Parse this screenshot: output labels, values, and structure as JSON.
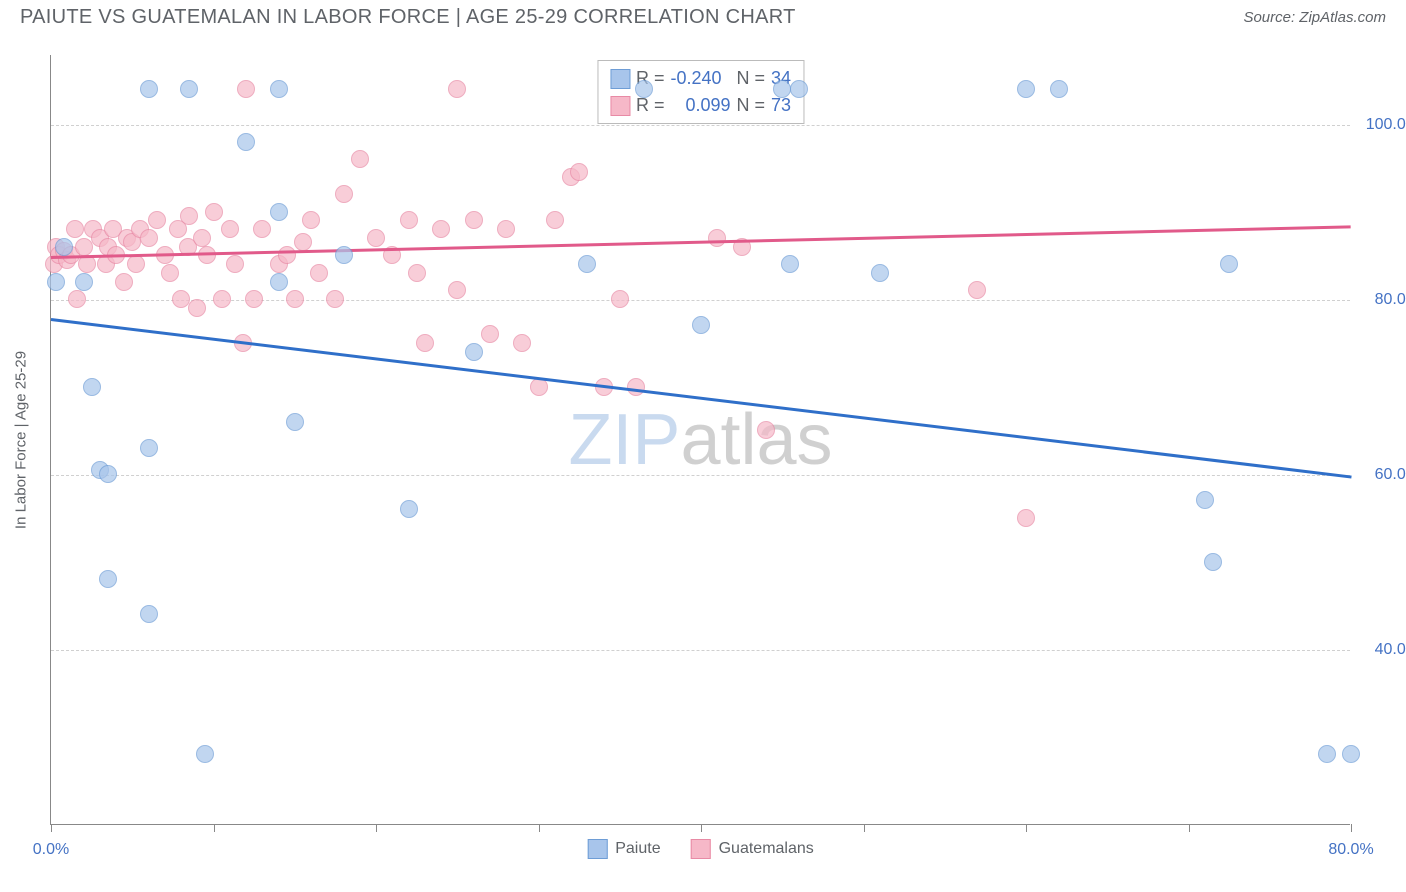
{
  "title": "PAIUTE VS GUATEMALAN IN LABOR FORCE | AGE 25-29 CORRELATION CHART",
  "source": "Source: ZipAtlas.com",
  "chart": {
    "type": "scatter",
    "yaxis_label": "In Labor Force | Age 25-29",
    "xlim": [
      0,
      80
    ],
    "ylim": [
      20,
      108
    ],
    "xtick_positions": [
      0,
      10,
      20,
      30,
      40,
      50,
      60,
      70,
      80
    ],
    "xtick_labels": {
      "0": "0.0%",
      "80": "80.0%"
    },
    "ytick_positions": [
      40,
      60,
      80,
      100
    ],
    "ytick_labels": [
      "40.0%",
      "60.0%",
      "80.0%",
      "100.0%"
    ],
    "background_color": "#ffffff",
    "grid_color": "#d0d0d0",
    "marker_radius": 9,
    "series": {
      "paiute": {
        "label": "Paiute",
        "color_fill": "#a8c5eb",
        "color_stroke": "#6e9dd6",
        "reg_color": "#2f6fc9",
        "R": "-0.240",
        "N": "34",
        "reg_start": [
          0,
          78
        ],
        "reg_end": [
          80,
          60
        ],
        "points": [
          [
            0.3,
            82
          ],
          [
            0.8,
            86
          ],
          [
            2,
            82
          ],
          [
            2.5,
            70
          ],
          [
            3,
            60.5
          ],
          [
            3.5,
            60
          ],
          [
            3.5,
            48
          ],
          [
            6,
            104
          ],
          [
            6,
            63
          ],
          [
            6,
            44
          ],
          [
            8.5,
            104
          ],
          [
            9.5,
            28
          ],
          [
            12,
            98
          ],
          [
            14,
            104
          ],
          [
            14,
            90
          ],
          [
            14,
            82
          ],
          [
            15,
            66
          ],
          [
            18,
            85
          ],
          [
            22,
            56
          ],
          [
            26,
            74
          ],
          [
            33,
            84
          ],
          [
            36.5,
            104
          ],
          [
            40,
            77
          ],
          [
            45,
            104
          ],
          [
            45.5,
            84
          ],
          [
            46,
            104
          ],
          [
            51,
            83
          ],
          [
            60,
            104
          ],
          [
            62,
            104
          ],
          [
            71,
            57
          ],
          [
            71.5,
            50
          ],
          [
            72.5,
            84
          ],
          [
            78.5,
            28
          ],
          [
            80,
            28
          ]
        ]
      },
      "guatemalans": {
        "label": "Guatemalans",
        "color_fill": "#f6b8c8",
        "color_stroke": "#e88aa5",
        "reg_color": "#e15a8a",
        "R": "0.099",
        "N": "73",
        "reg_start": [
          0,
          85
        ],
        "reg_end": [
          80,
          88.5
        ],
        "points": [
          [
            0.2,
            84
          ],
          [
            0.3,
            86
          ],
          [
            0.5,
            85
          ],
          [
            0.8,
            85.5
          ],
          [
            1,
            84.5
          ],
          [
            1.2,
            85
          ],
          [
            1.5,
            88
          ],
          [
            1.6,
            80
          ],
          [
            2,
            86
          ],
          [
            2.2,
            84
          ],
          [
            2.6,
            88
          ],
          [
            3,
            87
          ],
          [
            3.4,
            84
          ],
          [
            3.5,
            86
          ],
          [
            3.8,
            88
          ],
          [
            4,
            85
          ],
          [
            4.5,
            82
          ],
          [
            4.7,
            87
          ],
          [
            5,
            86.5
          ],
          [
            5.2,
            84
          ],
          [
            5.5,
            88
          ],
          [
            6,
            87
          ],
          [
            6.5,
            89
          ],
          [
            7,
            85
          ],
          [
            7.3,
            83
          ],
          [
            7.8,
            88
          ],
          [
            8,
            80
          ],
          [
            8.4,
            86
          ],
          [
            8.5,
            89.5
          ],
          [
            9,
            79
          ],
          [
            9.3,
            87
          ],
          [
            9.6,
            85
          ],
          [
            10,
            90
          ],
          [
            10.5,
            80
          ],
          [
            11,
            88
          ],
          [
            11.3,
            84
          ],
          [
            11.8,
            75
          ],
          [
            12,
            104
          ],
          [
            12.5,
            80
          ],
          [
            13,
            88
          ],
          [
            14,
            84
          ],
          [
            14.5,
            85
          ],
          [
            15,
            80
          ],
          [
            15.5,
            86.5
          ],
          [
            16,
            89
          ],
          [
            16.5,
            83
          ],
          [
            17.5,
            80
          ],
          [
            18,
            92
          ],
          [
            19,
            96
          ],
          [
            20,
            87
          ],
          [
            21,
            85
          ],
          [
            22,
            89
          ],
          [
            22.5,
            83
          ],
          [
            23,
            75
          ],
          [
            24,
            88
          ],
          [
            25,
            104
          ],
          [
            25,
            81
          ],
          [
            26,
            89
          ],
          [
            27,
            76
          ],
          [
            28,
            88
          ],
          [
            29,
            75
          ],
          [
            30,
            70
          ],
          [
            31,
            89
          ],
          [
            32,
            94
          ],
          [
            32.5,
            94.5
          ],
          [
            34,
            70
          ],
          [
            35,
            80
          ],
          [
            36,
            70
          ],
          [
            41,
            87
          ],
          [
            42.5,
            86
          ],
          [
            44,
            65
          ],
          [
            57,
            81
          ],
          [
            60,
            55
          ]
        ]
      }
    },
    "watermark": {
      "z": "ZIP",
      "rest": "atlas"
    }
  }
}
